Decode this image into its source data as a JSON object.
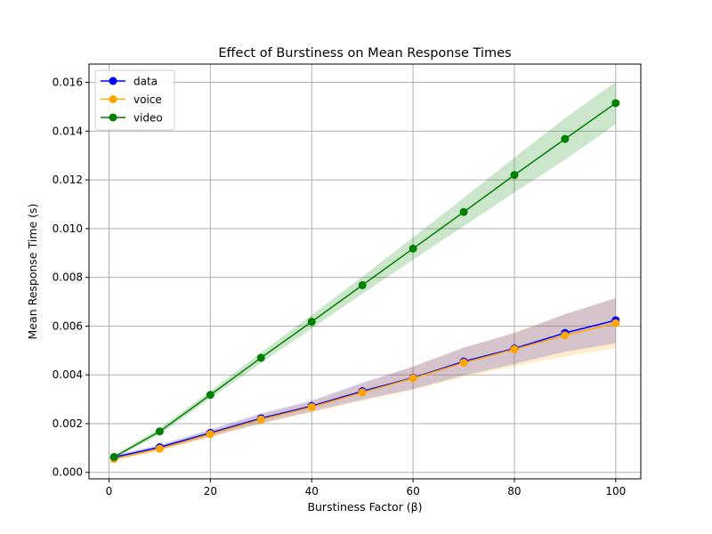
{
  "chart_data": {
    "type": "line",
    "title": "Effect of Burstiness on Mean Response Times",
    "xlabel": "Burstiness Factor (β)",
    "ylabel": "Mean Response Time (s)",
    "xlim": [
      -3.95,
      104.95
    ],
    "ylim": [
      -0.000265,
      0.01675
    ],
    "x_ticks": [
      0,
      20,
      40,
      60,
      80,
      100
    ],
    "x_tick_labels": [
      "0",
      "20",
      "40",
      "60",
      "80",
      "100"
    ],
    "y_ticks": [
      0.0,
      0.002,
      0.004,
      0.006,
      0.008,
      0.01,
      0.012,
      0.014,
      0.016
    ],
    "y_tick_labels": [
      "0.000",
      "0.002",
      "0.004",
      "0.006",
      "0.008",
      "0.010",
      "0.012",
      "0.014",
      "0.016"
    ],
    "grid": true,
    "legend_position": "top-left",
    "x": [
      1,
      10,
      20,
      30,
      40,
      50,
      60,
      70,
      80,
      90,
      100
    ],
    "series": [
      {
        "name": "data",
        "color": "#0000ff",
        "values": [
          0.00062,
          0.00103,
          0.00162,
          0.00222,
          0.00272,
          0.00333,
          0.00388,
          0.00455,
          0.00508,
          0.00572,
          0.00624
        ],
        "band_lower": [
          0.00055,
          0.00093,
          0.00148,
          0.00202,
          0.0025,
          0.00298,
          0.00342,
          0.00398,
          0.00445,
          0.00495,
          0.0053
        ],
        "band_upper": [
          0.00069,
          0.00113,
          0.00176,
          0.00242,
          0.00294,
          0.00368,
          0.00434,
          0.00512,
          0.00571,
          0.00649,
          0.00715
        ]
      },
      {
        "name": "voice",
        "color": "#ffa500",
        "values": [
          0.00055,
          0.00097,
          0.00157,
          0.00217,
          0.00268,
          0.00328,
          0.00386,
          0.0045,
          0.00505,
          0.00562,
          0.00612
        ],
        "band_lower": [
          0.00049,
          0.00087,
          0.00143,
          0.00198,
          0.00245,
          0.00293,
          0.00338,
          0.0039,
          0.00435,
          0.00475,
          0.0051
        ],
        "band_upper": [
          0.00061,
          0.00107,
          0.00171,
          0.00236,
          0.00291,
          0.00363,
          0.00434,
          0.0051,
          0.00575,
          0.00649,
          0.00714
        ]
      },
      {
        "name": "video",
        "color": "#008000",
        "values": [
          0.00063,
          0.00168,
          0.00318,
          0.0047,
          0.00618,
          0.00768,
          0.00918,
          0.01068,
          0.0122,
          0.01368,
          0.01515
        ],
        "band_lower": [
          0.00057,
          0.00155,
          0.00303,
          0.00448,
          0.0059,
          0.00733,
          0.00872,
          0.0101,
          0.01148,
          0.01283,
          0.01428
        ],
        "band_upper": [
          0.00069,
          0.00181,
          0.00333,
          0.00492,
          0.00646,
          0.00803,
          0.00964,
          0.01126,
          0.01292,
          0.01453,
          0.01602
        ]
      }
    ]
  }
}
